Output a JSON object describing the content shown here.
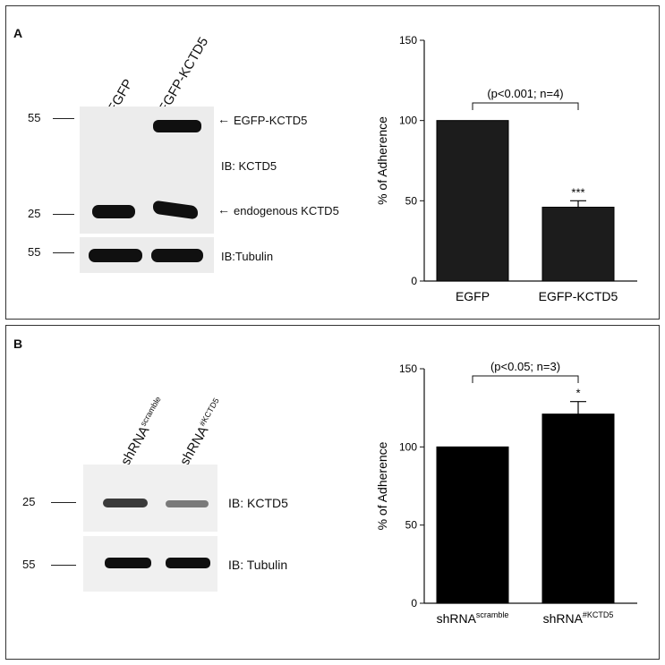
{
  "panels": [
    {
      "label": "A",
      "lanes": [
        "EGFP",
        "EGFP-KCTD5"
      ],
      "markers": [
        "55",
        "25",
        "55"
      ],
      "annotations": {
        "band_top": "EGFP-KCTD5",
        "ib1": "IB: KCTD5",
        "band_bottom": "endogenous KCTD5",
        "ib2": "IB:Tubulin"
      }
    },
    {
      "label": "B",
      "lanes": [
        {
          "base": "shRNA",
          "sup": "scramble"
        },
        {
          "base": "shRNA",
          "sup": "#KCTD5"
        }
      ],
      "markers": [
        "25",
        "55"
      ],
      "annotations": {
        "ib1": "IB: KCTD5",
        "ib2": "IB: Tubulin"
      }
    }
  ],
  "chart_data": [
    {
      "type": "bar",
      "categories": [
        "EGFP",
        "EGFP-KCTD5"
      ],
      "values": [
        100,
        46
      ],
      "errors": [
        0,
        4
      ],
      "ylabel": "% of  Adherence",
      "ylim": [
        0,
        150
      ],
      "yticks": [
        "0",
        "50",
        "100",
        "150"
      ],
      "significance_bracket": "(p<0.001; n=4)",
      "bar_marks": [
        "",
        "***"
      ],
      "bar_color": "#1c1c1c"
    },
    {
      "type": "bar",
      "categories": [
        {
          "base": "shRNA",
          "sup": "scramble"
        },
        {
          "base": "shRNA",
          "sup": "#KCTD5"
        }
      ],
      "values": [
        100,
        121
      ],
      "errors": [
        0,
        8
      ],
      "ylabel": "% of  Adherence",
      "ylim": [
        0,
        150
      ],
      "yticks": [
        "0",
        "50",
        "100",
        "150"
      ],
      "significance_bracket": "(p<0.05; n=3)",
      "bar_marks": [
        "",
        "*"
      ],
      "bar_color": "#000000"
    }
  ]
}
